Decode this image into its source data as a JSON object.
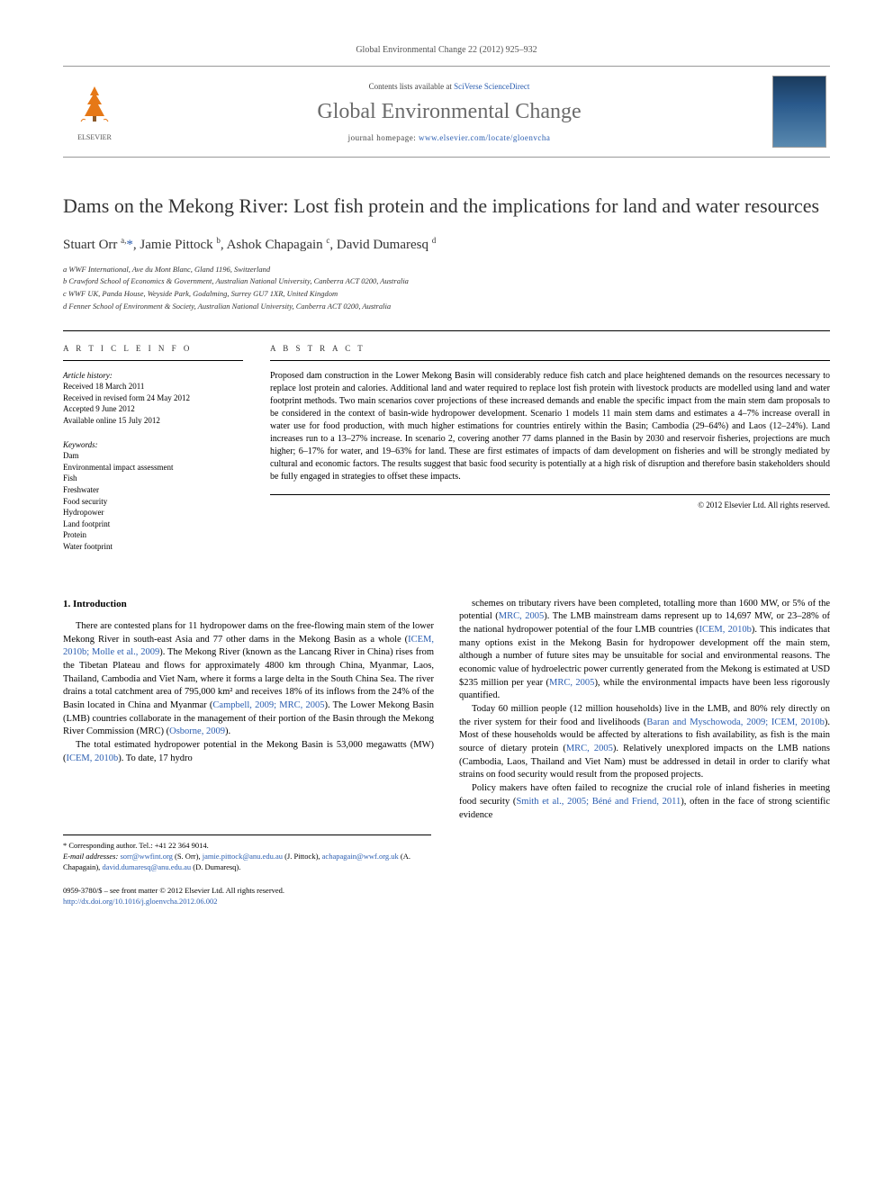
{
  "journal_ref": "Global Environmental Change 22 (2012) 925–932",
  "masthead": {
    "contents_prefix": "Contents lists available at ",
    "contents_link": "SciVerse ScienceDirect",
    "journal_title": "Global Environmental Change",
    "homepage_prefix": "journal homepage: ",
    "homepage_url": "www.elsevier.com/locate/gloenvcha",
    "publisher_label": "ELSEVIER"
  },
  "title": "Dams on the Mekong River: Lost fish protein and the implications for land and water resources",
  "authors_html": "Stuart Orr <sup>a,</sup><a href='#'>*</a>, Jamie Pittock <sup>b</sup>, Ashok Chapagain <sup>c</sup>, David Dumaresq <sup>d</sup>",
  "affiliations": [
    "a WWF International, Ave du Mont Blanc, Gland 1196, Switzerland",
    "b Crawford School of Economics & Government, Australian National University, Canberra ACT 0200, Australia",
    "c WWF UK, Panda House, Weyside Park, Godalming, Surrey GU7 1XR, United Kingdom",
    "d Fenner School of Environment & Society, Australian National University, Canberra ACT 0200, Australia"
  ],
  "article_info": {
    "heading": "A R T I C L E  I N F O",
    "history_label": "Article history:",
    "history": [
      "Received 18 March 2011",
      "Received in revised form 24 May 2012",
      "Accepted 9 June 2012",
      "Available online 15 July 2012"
    ],
    "keywords_label": "Keywords:",
    "keywords": [
      "Dam",
      "Environmental impact assessment",
      "Fish",
      "Freshwater",
      "Food security",
      "Hydropower",
      "Land footprint",
      "Protein",
      "Water footprint"
    ]
  },
  "abstract": {
    "heading": "A B S T R A C T",
    "text": "Proposed dam construction in the Lower Mekong Basin will considerably reduce fish catch and place heightened demands on the resources necessary to replace lost protein and calories. Additional land and water required to replace lost fish protein with livestock products are modelled using land and water footprint methods. Two main scenarios cover projections of these increased demands and enable the specific impact from the main stem dam proposals to be considered in the context of basin-wide hydropower development. Scenario 1 models 11 main stem dams and estimates a 4–7% increase overall in water use for food production, with much higher estimations for countries entirely within the Basin; Cambodia (29–64%) and Laos (12–24%). Land increases run to a 13–27% increase. In scenario 2, covering another 77 dams planned in the Basin by 2030 and reservoir fisheries, projections are much higher; 6–17% for water, and 19–63% for land. These are first estimates of impacts of dam development on fisheries and will be strongly mediated by cultural and economic factors. The results suggest that basic food security is potentially at a high risk of disruption and therefore basin stakeholders should be fully engaged in strategies to offset these impacts.",
    "copyright": "© 2012 Elsevier Ltd. All rights reserved."
  },
  "body": {
    "section_heading": "1. Introduction",
    "col1": [
      "There are contested plans for 11 hydropower dams on the free-flowing main stem of the lower Mekong River in south-east Asia and 77 other dams in the Mekong Basin as a whole (<a href='#'>ICEM, 2010b; Molle et al., 2009</a>). The Mekong River (known as the Lancang River in China) rises from the Tibetan Plateau and flows for approximately 4800 km through China, Myanmar, Laos, Thailand, Cambodia and Viet Nam, where it forms a large delta in the South China Sea. The river drains a total catchment area of 795,000 km² and receives 18% of its inflows from the 24% of the Basin located in China and Myanmar (<a href='#'>Campbell, 2009; MRC, 2005</a>). The Lower Mekong Basin (LMB) countries collaborate in the management of their portion of the Basin through the Mekong River Commission (MRC) (<a href='#'>Osborne, 2009</a>).",
      "The total estimated hydropower potential in the Mekong Basin is 53,000 megawatts (MW) (<a href='#'>ICEM, 2010b</a>). To date, 17 hydro"
    ],
    "col2": [
      "schemes on tributary rivers have been completed, totalling more than 1600 MW, or 5% of the potential (<a href='#'>MRC, 2005</a>). The LMB mainstream dams represent up to 14,697 MW, or 23–28% of the national hydropower potential of the four LMB countries (<a href='#'>ICEM, 2010b</a>). This indicates that many options exist in the Mekong Basin for hydropower development off the main stem, although a number of future sites may be unsuitable for social and environmental reasons. The economic value of hydroelectric power currently generated from the Mekong is estimated at USD $235 million per year (<a href='#'>MRC, 2005</a>), while the environmental impacts have been less rigorously quantified.",
      "Today 60 million people (12 million households) live in the LMB, and 80% rely directly on the river system for their food and livelihoods (<a href='#'>Baran and Myschowoda, 2009; ICEM, 2010b</a>). Most of these households would be affected by alterations to fish availability, as fish is the main source of dietary protein (<a href='#'>MRC, 2005</a>). Relatively unexplored impacts on the LMB nations (Cambodia, Laos, Thailand and Viet Nam) must be addressed in detail in order to clarify what strains on food security would result from the proposed projects.",
      "Policy makers have often failed to recognize the crucial role of inland fisheries in meeting food security (<a href='#'>Smith et al., 2005; Béné and Friend, 2011</a>), often in the face of strong scientific evidence"
    ]
  },
  "footnotes": {
    "corresponding": "* Corresponding author. Tel.: +41 22 364 9014.",
    "emails_label": "E-mail addresses:",
    "emails_html": "<a href='#'>sorr@wwfint.org</a> (S. Orr), <a href='#'>jamie.pittock@anu.edu.au</a> (J. Pittock), <a href='#'>achapagain@wwf.org.uk</a> (A. Chapagain), <a href='#'>david.dumaresq@anu.edu.au</a> (D. Dumaresq)."
  },
  "bottom": {
    "issn_line": "0959-3780/$ – see front matter © 2012 Elsevier Ltd. All rights reserved.",
    "doi": "http://dx.doi.org/10.1016/j.gloenvcha.2012.06.002"
  },
  "colors": {
    "link": "#2a5db0",
    "text": "#000000",
    "muted": "#555555",
    "journal_title": "#6b6b6b"
  }
}
